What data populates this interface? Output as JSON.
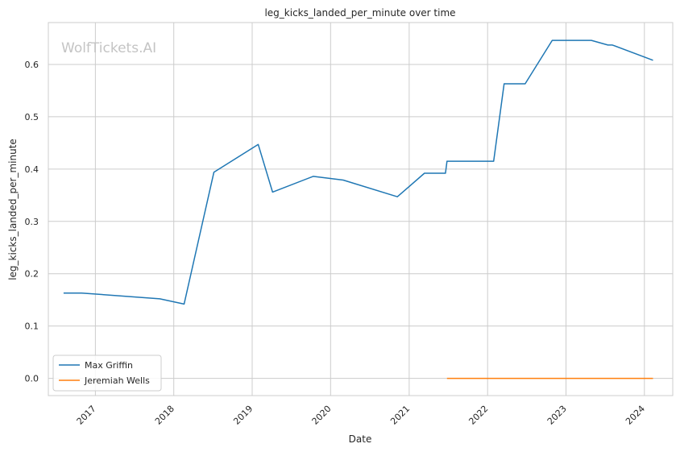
{
  "chart_data": {
    "type": "line",
    "title": "leg_kicks_landed_per_minute over time",
    "xlabel": "Date",
    "ylabel": "leg_kicks_landed_per_minute",
    "watermark": "WolfTickets.AI",
    "x_ticks": [
      "2017",
      "2018",
      "2019",
      "2020",
      "2021",
      "2022",
      "2023",
      "2024"
    ],
    "y_ticks": [
      "0.0",
      "0.1",
      "0.2",
      "0.3",
      "0.4",
      "0.5",
      "0.6"
    ],
    "ylim": [
      -0.033,
      0.68
    ],
    "xlim": [
      "2016-05-27",
      "2024-05-12"
    ],
    "grid": true,
    "legend_position": "lower-left",
    "series": [
      {
        "name": "Max Griffin",
        "color": "#1f77b4",
        "x": [
          "2016-08-06",
          "2016-10-29",
          "2017-10-28",
          "2018-02-18",
          "2018-07-07",
          "2019-01-29",
          "2019-04-06",
          "2019-10-12",
          "2020-02-29",
          "2020-11-07",
          "2021-03-13",
          "2021-06-19",
          "2021-06-26",
          "2022-01-29",
          "2022-03-19",
          "2022-06-25",
          "2022-10-29",
          "2023-04-29",
          "2023-07-15",
          "2023-08-05",
          "2024-02-10"
        ],
        "y": [
          0.163,
          0.163,
          0.152,
          0.142,
          0.394,
          0.447,
          0.356,
          0.386,
          0.379,
          0.347,
          0.392,
          0.392,
          0.415,
          0.415,
          0.563,
          0.563,
          0.646,
          0.646,
          0.637,
          0.637,
          0.608
        ]
      },
      {
        "name": "Jeremiah Wells",
        "color": "#ff7f0e",
        "x": [
          "2021-06-26",
          "2024-02-10"
        ],
        "y": [
          0.0,
          0.0
        ]
      }
    ]
  }
}
